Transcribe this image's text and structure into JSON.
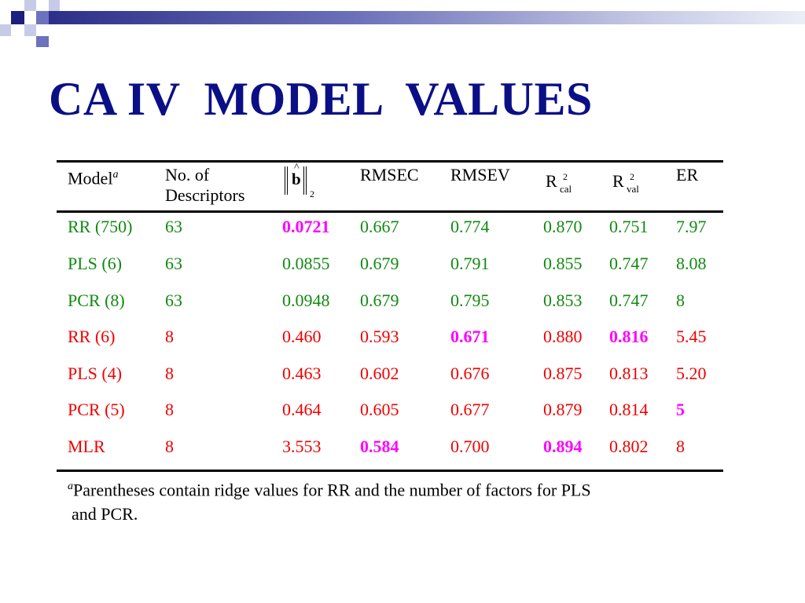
{
  "title": "CA IV  MODEL  VALUES",
  "table": {
    "headers": {
      "model": "Model",
      "model_sup": "a",
      "descriptors_line1": "No. of",
      "descriptors_line2": "Descriptors",
      "norm_symbol": "b",
      "norm_sub": "2",
      "rmsec": "RMSEC",
      "rmsev": "RMSEV",
      "rcal_base": "R",
      "rcal_sup": "2",
      "rcal_sub": "cal",
      "rval_base": "R",
      "rval_sup": "2",
      "rval_sub": "val",
      "er": "ER"
    },
    "rows": [
      {
        "model": "RR (750)",
        "desc": "63",
        "norm": "0.0721",
        "rmsec": "0.667",
        "rmsev": "0.774",
        "rcal": "0.870",
        "rval": "0.751",
        "er": "7.97"
      },
      {
        "model": "PLS (6)",
        "desc": "63",
        "norm": "0.0855",
        "rmsec": "0.679",
        "rmsev": "0.791",
        "rcal": "0.855",
        "rval": "0.747",
        "er": "8.08"
      },
      {
        "model": "PCR (8)",
        "desc": "63",
        "norm": "0.0948",
        "rmsec": "0.679",
        "rmsev": "0.795",
        "rcal": "0.853",
        "rval": "0.747",
        "er": "8"
      },
      {
        "model": "RR (6)",
        "desc": "8",
        "norm": "0.460",
        "rmsec": "0.593",
        "rmsev": "0.671",
        "rcal": "0.880",
        "rval": "0.816",
        "er": "5.45"
      },
      {
        "model": "PLS (4)",
        "desc": "8",
        "norm": "0.463",
        "rmsec": "0.602",
        "rmsev": "0.676",
        "rcal": "0.875",
        "rval": "0.813",
        "er": "5.20"
      },
      {
        "model": "PCR (5)",
        "desc": "8",
        "norm": "0.464",
        "rmsec": "0.605",
        "rmsev": "0.677",
        "rcal": "0.879",
        "rval": "0.814",
        "er": "5"
      },
      {
        "model": "MLR",
        "desc": "8",
        "norm": "3.553",
        "rmsec": "0.584",
        "rmsev": "0.700",
        "rcal": "0.894",
        "rval": "0.802",
        "er": "8"
      }
    ]
  },
  "footnote": {
    "marker": "a",
    "line1": "Parentheses contain ridge values for RR and the number of factors for PLS",
    "line2": "and PCR."
  },
  "colors": {
    "title": "#0b0f86",
    "group_63_rows": "#118a11",
    "group_8_rows": "#f00000",
    "highlight": "#ff00ff"
  }
}
